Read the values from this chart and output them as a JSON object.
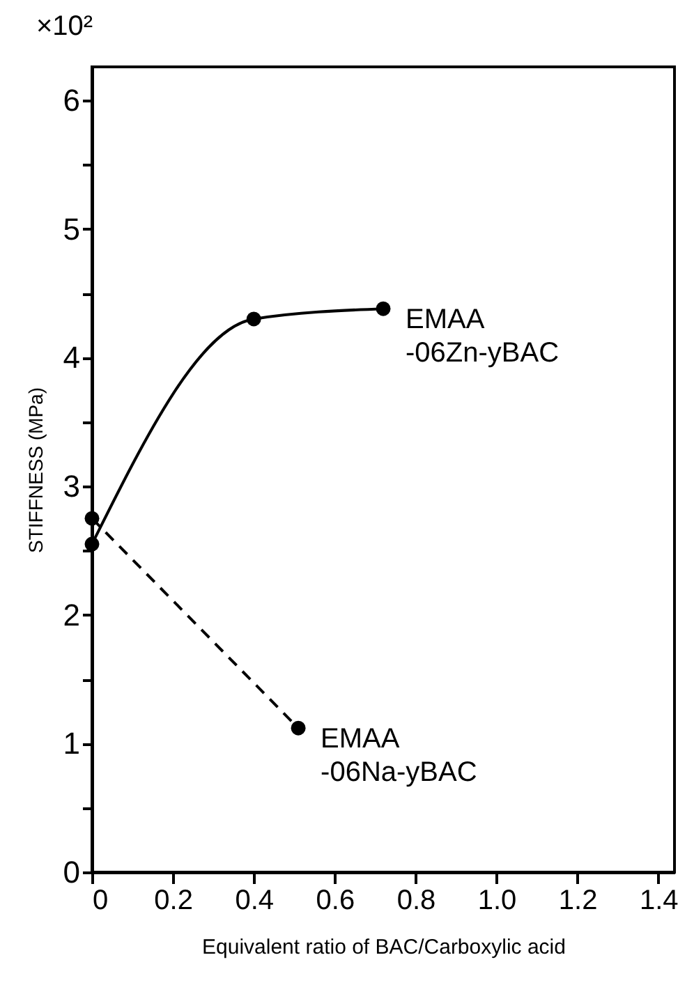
{
  "chart_data": {
    "type": "line",
    "xlabel": "Equivalent ratio of BAC/Carboxylic acid",
    "ylabel": "STIFFNESS (MPa)",
    "annotations": [
      "×10²"
    ],
    "xlim": [
      0,
      1.44
    ],
    "ylim": [
      0,
      6.26
    ],
    "xticks": [
      0,
      0.2,
      0.4,
      0.6,
      0.8,
      {
        "value": 1,
        "label": "1.0"
      },
      1.2,
      1.4
    ],
    "yticks": [
      0,
      {
        "value": 0.5,
        "label": null
      },
      1,
      {
        "value": 1.5,
        "label": null
      },
      2,
      {
        "value": 2.5,
        "label": null
      },
      3,
      {
        "value": 3.5,
        "label": null
      },
      4,
      {
        "value": 4.5,
        "label": null
      },
      5,
      {
        "value": 5.5,
        "label": null
      },
      6
    ],
    "marker": "circle",
    "series": [
      {
        "name": "EMAA -06Zn-yBAC",
        "color": "#000000",
        "line_style": "solid",
        "x": [
          0,
          0.4,
          0.72
        ],
        "values": [
          2.55,
          4.3,
          4.38
        ]
      },
      {
        "name": "EMAA -06Na-yBAC",
        "color": "#000000",
        "line_style": "dashed",
        "x": [
          0,
          0.51
        ],
        "values": [
          2.75,
          1.12
        ]
      }
    ]
  }
}
